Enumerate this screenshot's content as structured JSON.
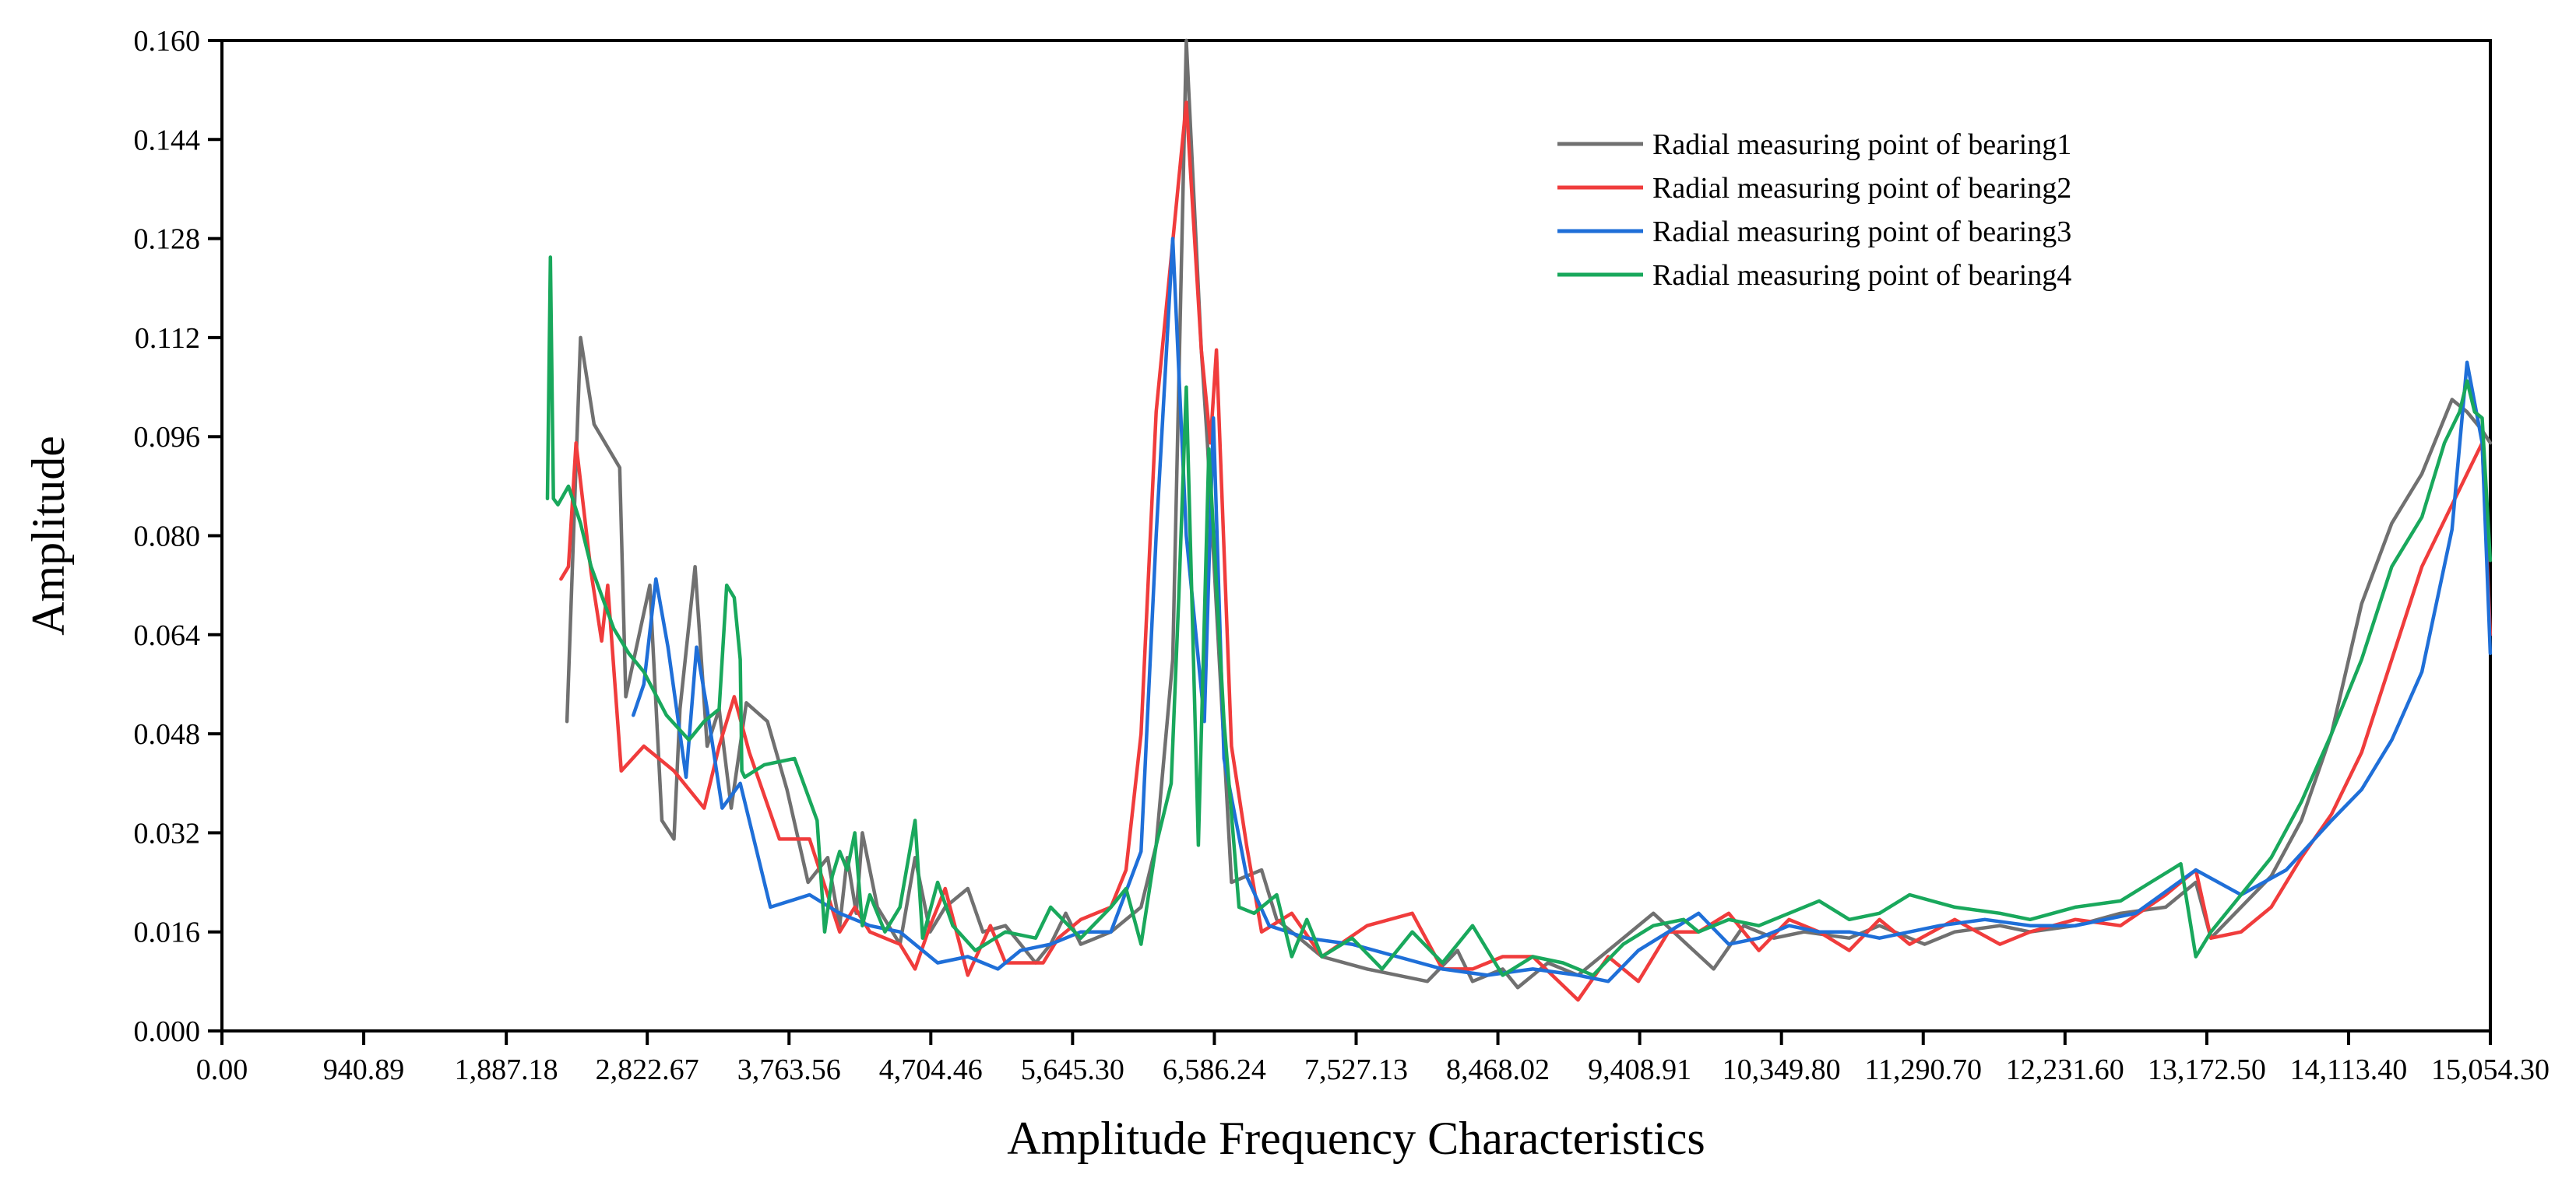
{
  "chart_data": {
    "type": "line",
    "title": "",
    "xlabel": "Amplitude Frequency Characteristics",
    "ylabel": "Amplitude",
    "xlim": [
      0,
      15054.3
    ],
    "ylim": [
      0,
      0.16
    ],
    "x_ticks": [
      0,
      940.89,
      1887.18,
      2822.67,
      3763.56,
      4704.46,
      5645.3,
      6586.24,
      7527.13,
      8468.02,
      9408.91,
      10349.8,
      11290.7,
      12231.6,
      13172.5,
      14113.4,
      15054.3
    ],
    "x_tick_labels": [
      "0.00",
      "940.89",
      "1,887.18",
      "2,822.67",
      "3,763.56",
      "4,704.46",
      "5,645.30",
      "6,586.24",
      "7,527.13",
      "8,468.02",
      "9,408.91",
      "10,349.80",
      "11,290.70",
      "12,231.60",
      "13,172.50",
      "14,113.40",
      "15,054.30"
    ],
    "y_ticks": [
      0,
      0.016,
      0.032,
      0.048,
      0.064,
      0.08,
      0.096,
      0.112,
      0.128,
      0.144,
      0.16
    ],
    "y_tick_labels": [
      "0.000",
      "0.016",
      "0.032",
      "0.048",
      "0.064",
      "0.080",
      "0.096",
      "0.112",
      "0.128",
      "0.144",
      "0.160"
    ],
    "grid": false,
    "legend_position": "top-right",
    "series": [
      {
        "name": "Radial measuring point of bearing1",
        "color": "#707070",
        "x": [
          2290,
          2330,
          2380,
          2470,
          2640,
          2680,
          2840,
          2920,
          3000,
          3040,
          3140,
          3220,
          3300,
          3380,
          3480,
          3620,
          3750,
          3890,
          4020,
          4100,
          4150,
          4210,
          4250,
          4350,
          4500,
          4600,
          4700,
          4800,
          4950,
          5050,
          5200,
          5400,
          5500,
          5600,
          5700,
          5800,
          5900,
          6100,
          6200,
          6310,
          6400,
          6500,
          6540,
          6700,
          6900,
          7000,
          7100,
          7300,
          7600,
          8000,
          8200,
          8300,
          8500,
          8600,
          8800,
          9000,
          9300,
          9500,
          9900,
          10100,
          10300,
          10500,
          10800,
          11000,
          11300,
          11500,
          11800,
          12000,
          12300,
          12600,
          12900,
          13100,
          13200,
          13600,
          13800,
          14000,
          14200,
          14400,
          14600,
          14800,
          14900,
          15000,
          15054
        ],
        "y": [
          0.05,
          0.078,
          0.112,
          0.098,
          0.091,
          0.054,
          0.072,
          0.034,
          0.031,
          0.052,
          0.075,
          0.046,
          0.052,
          0.036,
          0.053,
          0.05,
          0.039,
          0.024,
          0.028,
          0.017,
          0.028,
          0.019,
          0.032,
          0.02,
          0.014,
          0.028,
          0.016,
          0.02,
          0.023,
          0.016,
          0.017,
          0.011,
          0.014,
          0.019,
          0.014,
          0.015,
          0.016,
          0.02,
          0.03,
          0.06,
          0.16,
          0.11,
          0.095,
          0.024,
          0.026,
          0.018,
          0.016,
          0.012,
          0.01,
          0.008,
          0.013,
          0.008,
          0.01,
          0.007,
          0.011,
          0.009,
          0.015,
          0.019,
          0.01,
          0.017,
          0.015,
          0.016,
          0.015,
          0.017,
          0.014,
          0.016,
          0.017,
          0.016,
          0.017,
          0.019,
          0.02,
          0.024,
          0.015,
          0.025,
          0.034,
          0.048,
          0.069,
          0.082,
          0.09,
          0.102,
          0.1,
          0.097,
          0.095
        ]
      },
      {
        "name": "Radial measuring point of bearing2",
        "color": "#f03c3c",
        "x": [
          2250,
          2300,
          2350,
          2450,
          2520,
          2560,
          2650,
          2800,
          3000,
          3200,
          3300,
          3400,
          3500,
          3600,
          3700,
          3800,
          3900,
          4100,
          4200,
          4300,
          4500,
          4600,
          4700,
          4800,
          4950,
          5100,
          5200,
          5300,
          5450,
          5550,
          5700,
          5900,
          6000,
          6100,
          6200,
          6400,
          6500,
          6560,
          6600,
          6700,
          6800,
          6900,
          7100,
          7300,
          7600,
          7900,
          8100,
          8300,
          8500,
          8700,
          9000,
          9200,
          9400,
          9600,
          9800,
          10000,
          10200,
          10400,
          10600,
          10800,
          11000,
          11200,
          11500,
          11800,
          12000,
          12300,
          12600,
          12900,
          13100,
          13200,
          13400,
          13600,
          13800,
          14000,
          14200,
          14400,
          14600,
          14800,
          14900,
          15000,
          15054
        ],
        "y": [
          0.073,
          0.075,
          0.095,
          0.074,
          0.063,
          0.072,
          0.042,
          0.046,
          0.042,
          0.036,
          0.046,
          0.054,
          0.045,
          0.038,
          0.031,
          0.031,
          0.031,
          0.016,
          0.02,
          0.016,
          0.014,
          0.01,
          0.017,
          0.023,
          0.009,
          0.017,
          0.011,
          0.011,
          0.011,
          0.015,
          0.018,
          0.02,
          0.026,
          0.048,
          0.1,
          0.15,
          0.11,
          0.095,
          0.11,
          0.046,
          0.03,
          0.016,
          0.019,
          0.012,
          0.017,
          0.019,
          0.01,
          0.01,
          0.012,
          0.012,
          0.005,
          0.012,
          0.008,
          0.016,
          0.016,
          0.019,
          0.013,
          0.018,
          0.016,
          0.013,
          0.018,
          0.014,
          0.018,
          0.014,
          0.016,
          0.018,
          0.017,
          0.022,
          0.026,
          0.015,
          0.016,
          0.02,
          0.028,
          0.035,
          0.045,
          0.06,
          0.075,
          0.085,
          0.09,
          0.095,
          0.064
        ]
      },
      {
        "name": "Radial measuring point of bearing3",
        "color": "#1f6fd8",
        "x": [
          2730,
          2800,
          2880,
          2960,
          3080,
          3150,
          3220,
          3320,
          3440,
          3640,
          3900,
          4100,
          4300,
          4500,
          4750,
          4950,
          5150,
          5300,
          5500,
          5700,
          5900,
          6100,
          6200,
          6310,
          6400,
          6520,
          6580,
          6650,
          6800,
          6950,
          7200,
          7500,
          7800,
          8100,
          8400,
          8700,
          9000,
          9200,
          9400,
          9600,
          9800,
          10000,
          10200,
          10400,
          10600,
          10800,
          11000,
          11200,
          11400,
          11700,
          12000,
          12300,
          12700,
          13100,
          13400,
          13700,
          14000,
          14200,
          14400,
          14600,
          14800,
          14900,
          15000,
          15054
        ],
        "y": [
          0.051,
          0.056,
          0.073,
          0.062,
          0.041,
          0.062,
          0.052,
          0.036,
          0.04,
          0.02,
          0.022,
          0.019,
          0.017,
          0.016,
          0.011,
          0.012,
          0.01,
          0.013,
          0.014,
          0.016,
          0.016,
          0.029,
          0.08,
          0.128,
          0.08,
          0.05,
          0.099,
          0.044,
          0.025,
          0.017,
          0.015,
          0.014,
          0.012,
          0.01,
          0.009,
          0.01,
          0.009,
          0.008,
          0.013,
          0.016,
          0.019,
          0.014,
          0.015,
          0.017,
          0.016,
          0.016,
          0.015,
          0.016,
          0.017,
          0.018,
          0.017,
          0.017,
          0.019,
          0.026,
          0.022,
          0.026,
          0.034,
          0.039,
          0.047,
          0.058,
          0.081,
          0.108,
          0.095,
          0.061
        ]
      },
      {
        "name": "Radial measuring point of bearing4",
        "color": "#19a85c",
        "x": [
          2160,
          2180,
          2200,
          2230,
          2300,
          2380,
          2450,
          2600,
          2700,
          2800,
          2950,
          3100,
          3200,
          3300,
          3350,
          3400,
          3440,
          3450,
          3470,
          3600,
          3800,
          3950,
          4000,
          4050,
          4100,
          4150,
          4200,
          4250,
          4300,
          4400,
          4500,
          4600,
          4650,
          4750,
          4850,
          5000,
          5200,
          5400,
          5500,
          5700,
          5900,
          6000,
          6100,
          6200,
          6300,
          6350,
          6400,
          6480,
          6550,
          6650,
          6750,
          6850,
          7000,
          7100,
          7200,
          7300,
          7500,
          7700,
          7900,
          8100,
          8300,
          8500,
          8700,
          8900,
          9100,
          9300,
          9500,
          9700,
          9800,
          10000,
          10200,
          10400,
          10600,
          10800,
          11000,
          11200,
          11500,
          11800,
          12000,
          12300,
          12600,
          12800,
          13000,
          13100,
          13200,
          13400,
          13600,
          13800,
          14000,
          14200,
          14400,
          14600,
          14750,
          14850,
          14900,
          14950,
          15000,
          15054
        ],
        "y": [
          0.086,
          0.125,
          0.086,
          0.085,
          0.088,
          0.082,
          0.075,
          0.065,
          0.061,
          0.058,
          0.051,
          0.047,
          0.05,
          0.052,
          0.072,
          0.07,
          0.06,
          0.042,
          0.041,
          0.043,
          0.044,
          0.034,
          0.016,
          0.025,
          0.029,
          0.026,
          0.032,
          0.017,
          0.022,
          0.016,
          0.02,
          0.034,
          0.015,
          0.024,
          0.017,
          0.013,
          0.016,
          0.015,
          0.02,
          0.015,
          0.02,
          0.023,
          0.014,
          0.03,
          0.04,
          0.07,
          0.104,
          0.03,
          0.094,
          0.05,
          0.02,
          0.019,
          0.022,
          0.012,
          0.018,
          0.012,
          0.015,
          0.01,
          0.016,
          0.011,
          0.017,
          0.009,
          0.012,
          0.011,
          0.009,
          0.014,
          0.017,
          0.018,
          0.016,
          0.018,
          0.017,
          0.019,
          0.021,
          0.018,
          0.019,
          0.022,
          0.02,
          0.019,
          0.018,
          0.02,
          0.021,
          0.024,
          0.027,
          0.012,
          0.016,
          0.022,
          0.028,
          0.037,
          0.048,
          0.06,
          0.075,
          0.083,
          0.095,
          0.1,
          0.105,
          0.1,
          0.099,
          0.076
        ]
      }
    ]
  }
}
